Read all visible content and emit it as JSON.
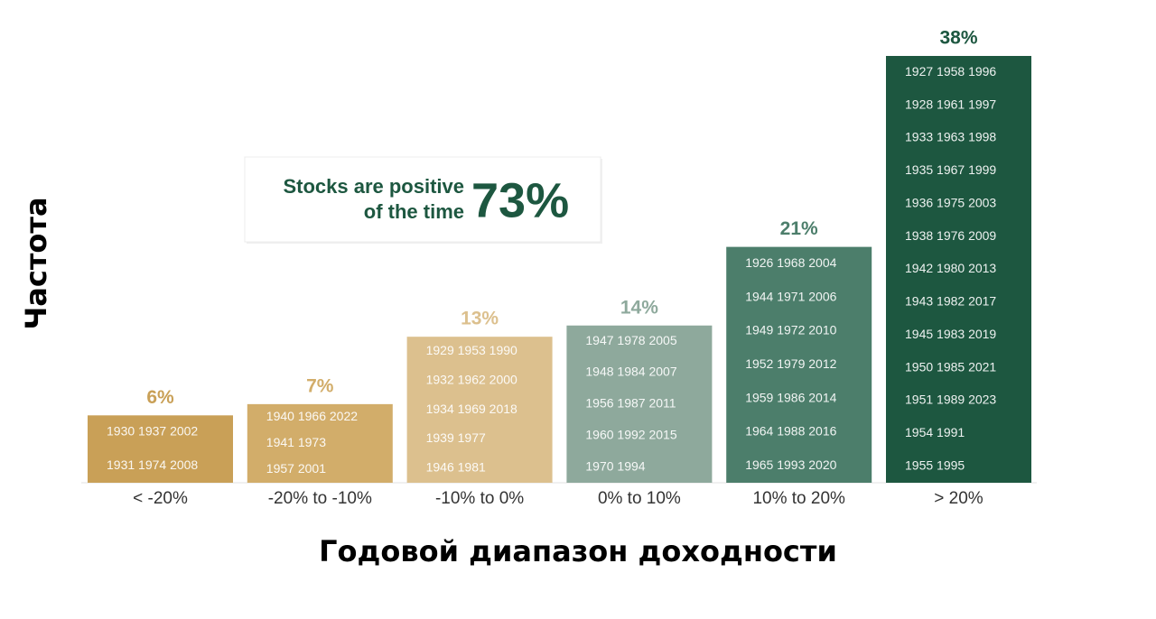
{
  "chart_data": {
    "type": "bar",
    "categories": [
      "< -20%",
      "-20% to -10%",
      "-10% to 0%",
      "0% to 10%",
      "10% to 20%",
      "> 20%"
    ],
    "values": [
      6,
      7,
      13,
      14,
      21,
      38
    ],
    "value_labels": [
      "6%",
      "7%",
      "13%",
      "14%",
      "21%",
      "38%"
    ],
    "colors": [
      "#c9a057",
      "#d2ad6a",
      "#dcc08e",
      "#8ea99c",
      "#4c7e6b",
      "#1d5740"
    ],
    "bar_texts": [
      [
        "1930 1937 2002",
        "1931 1974 2008"
      ],
      [
        "1940 1966 2022",
        "1941 1973",
        "1957 2001"
      ],
      [
        "1929 1953 1990",
        "1932 1962 2000",
        "1934 1969 2018",
        "1939 1977",
        "1946 1981"
      ],
      [
        "1947 1978 2005",
        "1948 1984 2007",
        "1956 1987 2011",
        "1960 1992 2015",
        "1970 1994"
      ],
      [
        "1926 1968 2004",
        "1944 1971 2006",
        "1949 1972 2010",
        "1952 1979 2012",
        "1959 1986 2014",
        "1964 1988 2016",
        "1965 1993 2020"
      ],
      [
        "1927 1958 1996",
        "1928 1961 1997",
        "1933 1963 1998",
        "1935 1967 1999",
        "1936 1975 2003",
        "1938 1976 2009",
        "1942 1980 2013",
        "1943 1982 2017",
        "1945 1983 2019",
        "1950 1985 2021",
        "1951 1989 2023",
        "1954 1991",
        "1955 1995"
      ]
    ],
    "annotation": {
      "line1": "Stocks are positive",
      "line2": "of the time",
      "big": "73%"
    },
    "x_label": "Годовой диапазон доходности",
    "y_label": "Частота"
  }
}
